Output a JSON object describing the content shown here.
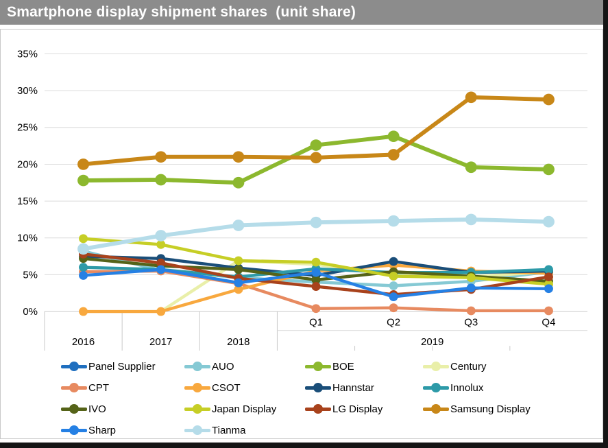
{
  "title": "Smartphone display shipment shares  (unit share)",
  "chart_data": {
    "type": "line",
    "title": "Smartphone display shipment shares (unit share)",
    "xlabel": "",
    "ylabel": "",
    "ylim": [
      0,
      35
    ],
    "ytick_step": 5,
    "ytick_labels": [
      "0%",
      "5%",
      "10%",
      "15%",
      "20%",
      "25%",
      "30%",
      "35%"
    ],
    "grid": true,
    "legend_position": "bottom",
    "categories": [
      "2016",
      "2017",
      "2018",
      "Q1",
      "Q2",
      "Q3",
      "Q4"
    ],
    "quarter_labels": [
      {
        "index": 3,
        "label": "Q1"
      },
      {
        "index": 4,
        "label": "Q2"
      },
      {
        "index": 5,
        "label": "Q3"
      },
      {
        "index": 6,
        "label": "Q4"
      }
    ],
    "year_groups": [
      {
        "label": "2016",
        "start": 0,
        "end": 0
      },
      {
        "label": "2017",
        "start": 1,
        "end": 1
      },
      {
        "label": "2018",
        "start": 2,
        "end": 2
      },
      {
        "label": "2019",
        "start": 3,
        "end": 6
      }
    ],
    "series": [
      {
        "name": "Panel Supplier",
        "color": "#1F6FBF",
        "thick": false,
        "values": [
          null,
          null,
          null,
          null,
          null,
          null,
          null
        ]
      },
      {
        "name": "AUO",
        "color": "#85C9D4",
        "thick": false,
        "values": [
          8.2,
          5.6,
          4.6,
          4.0,
          3.5,
          4.1,
          5.4
        ]
      },
      {
        "name": "BOE",
        "color": "#8CB82E",
        "thick": true,
        "values": [
          17.8,
          17.9,
          17.5,
          22.6,
          23.8,
          19.6,
          19.3
        ]
      },
      {
        "name": "Century",
        "color": "#E9EFA9",
        "thick": false,
        "values": [
          null,
          0.0,
          6.9,
          6.4,
          5.0,
          4.7,
          5.4
        ]
      },
      {
        "name": "CPT",
        "color": "#E78A60",
        "thick": false,
        "values": [
          5.4,
          5.5,
          3.8,
          0.4,
          0.5,
          0.1,
          0.1
        ]
      },
      {
        "name": "CSOT",
        "color": "#F8A83E",
        "thick": false,
        "values": [
          0.0,
          0.0,
          3.0,
          5.5,
          6.3,
          5.5,
          5.2
        ]
      },
      {
        "name": "Hannstar",
        "color": "#1A4E79",
        "thick": false,
        "values": [
          7.5,
          7.2,
          5.9,
          4.9,
          6.8,
          5.3,
          5.5
        ]
      },
      {
        "name": "Innolux",
        "color": "#2D9AA8",
        "thick": false,
        "values": [
          6.0,
          5.7,
          4.7,
          5.8,
          5.3,
          5.3,
          5.7
        ]
      },
      {
        "name": "IVO",
        "color": "#556318",
        "thick": false,
        "values": [
          7.2,
          6.2,
          5.7,
          4.3,
          5.4,
          4.8,
          4.1
        ]
      },
      {
        "name": "Japan Display",
        "color": "#C6CE26",
        "thick": false,
        "values": [
          9.9,
          9.1,
          6.9,
          6.7,
          4.8,
          4.6,
          3.7
        ]
      },
      {
        "name": "LG Display",
        "color": "#A8421C",
        "thick": false,
        "values": [
          7.8,
          6.6,
          4.5,
          3.4,
          2.3,
          3.0,
          4.7
        ]
      },
      {
        "name": "Samsung Display",
        "color": "#C88718",
        "thick": true,
        "values": [
          20.0,
          21.0,
          21.0,
          20.9,
          21.3,
          29.1,
          28.8
        ]
      },
      {
        "name": "Sharp",
        "color": "#2580E4",
        "thick": false,
        "values": [
          4.9,
          5.7,
          3.9,
          5.3,
          2.0,
          3.2,
          3.1
        ]
      },
      {
        "name": "Tianma",
        "color": "#B5DCE9",
        "thick": true,
        "values": [
          8.5,
          10.3,
          11.7,
          12.1,
          12.3,
          12.5,
          12.2
        ]
      }
    ],
    "axis_color": "#C9C9C9",
    "gridline_color": "#DCDCDC",
    "text_color": "#000000"
  }
}
